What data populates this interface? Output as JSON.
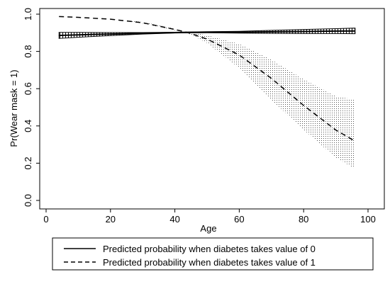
{
  "chart_data": {
    "type": "line",
    "title": "",
    "xlabel": "Age",
    "ylabel": "Pr(Wear mask = 1)",
    "xlim": [
      0,
      100
    ],
    "ylim": [
      0,
      1
    ],
    "x_ticks": [
      0,
      20,
      40,
      60,
      80,
      100
    ],
    "y_ticks": [
      0.0,
      0.2,
      0.4,
      0.6,
      0.8,
      1.0
    ],
    "x_tick_labels": [
      "0",
      "20",
      "40",
      "60",
      "80",
      "100"
    ],
    "y_tick_labels": [
      "0.0",
      "0.2",
      "0.4",
      "0.6",
      "0.8",
      "1.0"
    ],
    "grid": false,
    "legend_position": "bottom",
    "series": [
      {
        "name": "Predicted probability when diabetes takes value of 0",
        "line_style": "solid",
        "color": "#000000",
        "x": [
          4,
          10,
          20,
          30,
          40,
          44,
          50,
          60,
          70,
          80,
          90,
          96
        ],
        "y": [
          0.886,
          0.889,
          0.893,
          0.897,
          0.901,
          0.902,
          0.903,
          0.903,
          0.905,
          0.907,
          0.909,
          0.91
        ],
        "lower": [
          0.87,
          0.876,
          0.885,
          0.893,
          0.899,
          0.9,
          0.9,
          0.898,
          0.897,
          0.896,
          0.896,
          0.895
        ],
        "upper": [
          0.902,
          0.902,
          0.901,
          0.901,
          0.903,
          0.904,
          0.906,
          0.908,
          0.913,
          0.918,
          0.922,
          0.925
        ]
      },
      {
        "name": "Predicted probability when diabetes takes value of 1",
        "line_style": "dashed",
        "color": "#000000",
        "x": [
          4,
          10,
          20,
          30,
          40,
          44,
          50,
          60,
          70,
          80,
          90,
          96
        ],
        "y": [
          0.987,
          0.983,
          0.973,
          0.954,
          0.918,
          0.901,
          0.866,
          0.781,
          0.655,
          0.51,
          0.378,
          0.318
        ],
        "lower": [
          0.987,
          0.983,
          0.973,
          0.95,
          0.914,
          0.898,
          0.845,
          0.711,
          0.54,
          0.38,
          0.23,
          0.17
        ],
        "upper": [
          0.987,
          0.983,
          0.973,
          0.958,
          0.922,
          0.905,
          0.887,
          0.84,
          0.755,
          0.65,
          0.56,
          0.54
        ]
      }
    ]
  }
}
